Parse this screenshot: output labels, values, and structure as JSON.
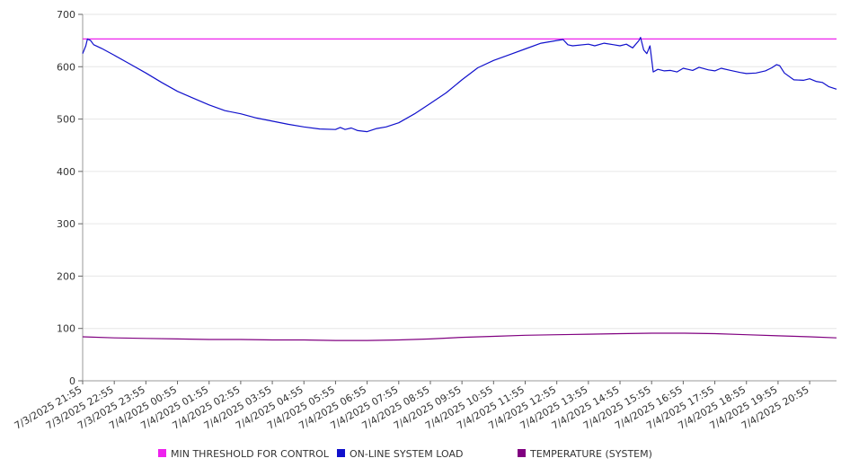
{
  "chart_data": {
    "type": "line",
    "title": "",
    "xlabel": "",
    "ylabel": "",
    "ylim": [
      0,
      700
    ],
    "y_ticks": [
      0,
      100,
      200,
      300,
      400,
      500,
      600,
      700
    ],
    "x_ticks": [
      "7/3/2025 21:55",
      "7/3/2025 22:55",
      "7/3/2025 23:55",
      "7/4/2025 00:55",
      "7/4/2025 01:55",
      "7/4/2025 02:55",
      "7/4/2025 03:55",
      "7/4/2025 04:55",
      "7/4/2025 05:55",
      "7/4/2025 06:55",
      "7/4/2025 07:55",
      "7/4/2025 08:55",
      "7/4/2025 09:55",
      "7/4/2025 10:55",
      "7/4/2025 11:55",
      "7/4/2025 12:55",
      "7/4/2025 13:55",
      "7/4/2025 14:55",
      "7/4/2025 15:55",
      "7/4/2025 16:55",
      "7/4/2025 17:55",
      "7/4/2025 18:55",
      "7/4/2025 19:55",
      "7/4/2025 20:55"
    ],
    "x_range_hours": [
      0,
      23.85
    ],
    "grid": "horizontal",
    "legend_position": "bottom",
    "series": [
      {
        "name": "MIN THRESHOLD FOR CONTROL",
        "color": "#ee22ee",
        "points": [
          [
            0,
            653
          ],
          [
            23.85,
            653
          ]
        ]
      },
      {
        "name": "ON-LINE SYSTEM LOAD",
        "color": "#1010cc",
        "points": [
          [
            0,
            625
          ],
          [
            0.1,
            640
          ],
          [
            0.15,
            653
          ],
          [
            0.25,
            650
          ],
          [
            0.35,
            642
          ],
          [
            0.6,
            635
          ],
          [
            1,
            622
          ],
          [
            1.5,
            605
          ],
          [
            2,
            588
          ],
          [
            2.5,
            570
          ],
          [
            3,
            553
          ],
          [
            3.5,
            540
          ],
          [
            4,
            527
          ],
          [
            4.5,
            516
          ],
          [
            5,
            510
          ],
          [
            5.5,
            502
          ],
          [
            6,
            496
          ],
          [
            6.5,
            490
          ],
          [
            7,
            485
          ],
          [
            7.5,
            481
          ],
          [
            8,
            480
          ],
          [
            8.15,
            484
          ],
          [
            8.3,
            480
          ],
          [
            8.5,
            483
          ],
          [
            8.7,
            478
          ],
          [
            9,
            476
          ],
          [
            9.3,
            482
          ],
          [
            9.6,
            485
          ],
          [
            10,
            493
          ],
          [
            10.5,
            510
          ],
          [
            11,
            530
          ],
          [
            11.5,
            550
          ],
          [
            12,
            575
          ],
          [
            12.5,
            598
          ],
          [
            13,
            612
          ],
          [
            13.5,
            623
          ],
          [
            14,
            634
          ],
          [
            14.5,
            645
          ],
          [
            15,
            650
          ],
          [
            15.2,
            652
          ],
          [
            15.35,
            642
          ],
          [
            15.5,
            640
          ],
          [
            16,
            643
          ],
          [
            16.2,
            640
          ],
          [
            16.5,
            645
          ],
          [
            16.8,
            642
          ],
          [
            17,
            640
          ],
          [
            17.2,
            643
          ],
          [
            17.4,
            636
          ],
          [
            17.6,
            650
          ],
          [
            17.65,
            656
          ],
          [
            17.75,
            632
          ],
          [
            17.85,
            625
          ],
          [
            17.95,
            640
          ],
          [
            18.05,
            590
          ],
          [
            18.2,
            595
          ],
          [
            18.4,
            592
          ],
          [
            18.6,
            593
          ],
          [
            18.8,
            590
          ],
          [
            19,
            597
          ],
          [
            19.3,
            593
          ],
          [
            19.5,
            599
          ],
          [
            19.8,
            594
          ],
          [
            20,
            592
          ],
          [
            20.2,
            597
          ],
          [
            20.5,
            593
          ],
          [
            20.8,
            589
          ],
          [
            21,
            587
          ],
          [
            21.3,
            588
          ],
          [
            21.6,
            592
          ],
          [
            21.8,
            598
          ],
          [
            21.95,
            604
          ],
          [
            22.05,
            602
          ],
          [
            22.2,
            588
          ],
          [
            22.5,
            575
          ],
          [
            22.8,
            574
          ],
          [
            23,
            577
          ],
          [
            23.2,
            572
          ],
          [
            23.4,
            570
          ],
          [
            23.6,
            562
          ],
          [
            23.85,
            557
          ]
        ]
      },
      {
        "name": "TEMPERATURE (SYSTEM)",
        "color": "#800080",
        "points": [
          [
            0,
            84
          ],
          [
            1,
            82
          ],
          [
            2,
            81
          ],
          [
            3,
            80
          ],
          [
            4,
            79
          ],
          [
            5,
            79
          ],
          [
            6,
            78
          ],
          [
            7,
            78
          ],
          [
            8,
            77
          ],
          [
            9,
            77
          ],
          [
            10,
            78
          ],
          [
            11,
            80
          ],
          [
            12,
            83
          ],
          [
            13,
            85
          ],
          [
            14,
            87
          ],
          [
            15,
            88
          ],
          [
            16,
            89
          ],
          [
            17,
            90
          ],
          [
            18,
            91
          ],
          [
            19,
            91
          ],
          [
            20,
            90
          ],
          [
            21,
            88
          ],
          [
            22,
            86
          ],
          [
            23,
            84
          ],
          [
            23.85,
            82
          ]
        ]
      }
    ]
  }
}
